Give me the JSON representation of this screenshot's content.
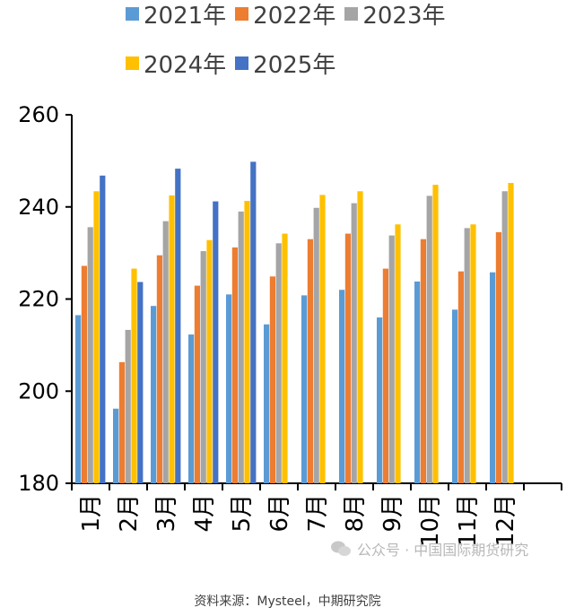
{
  "chart_data": {
    "type": "bar",
    "categories": [
      "1月",
      "2月",
      "3月",
      "4月",
      "5月",
      "6月",
      "7月",
      "8月",
      "9月",
      "10月",
      "11月",
      "12月"
    ],
    "series": [
      {
        "name": "2021年",
        "color": "#5B9BD5",
        "values": [
          216.5,
          196.2,
          218.5,
          212.3,
          221.0,
          214.5,
          220.8,
          222.0,
          216.0,
          223.8,
          217.7,
          225.8
        ]
      },
      {
        "name": "2022年",
        "color": "#ED7D31",
        "values": [
          227.2,
          206.3,
          229.5,
          222.9,
          231.2,
          224.9,
          233.0,
          234.2,
          226.6,
          233.0,
          226.0,
          234.5
        ]
      },
      {
        "name": "2023年",
        "color": "#A5A5A5",
        "values": [
          235.6,
          213.3,
          236.9,
          230.4,
          239.0,
          232.1,
          239.8,
          240.8,
          233.8,
          242.4,
          235.4,
          243.4
        ]
      },
      {
        "name": "2024年",
        "color": "#FFC000",
        "values": [
          243.4,
          226.6,
          242.5,
          232.8,
          241.3,
          234.2,
          242.6,
          243.4,
          236.2,
          244.8,
          236.2,
          245.2
        ]
      },
      {
        "name": "2025年",
        "color": "#4472C4",
        "values": [
          246.8,
          223.7,
          248.3,
          241.2,
          249.8,
          null,
          null,
          null,
          null,
          null,
          null,
          null
        ]
      }
    ],
    "ylim": [
      180,
      260
    ],
    "yticks": [
      180,
      200,
      220,
      240,
      260
    ],
    "legend": "top",
    "grid": false
  },
  "source": "资料来源：Mysteel，中期研究院",
  "watermark": "公众号 · 中国国际期货研究"
}
